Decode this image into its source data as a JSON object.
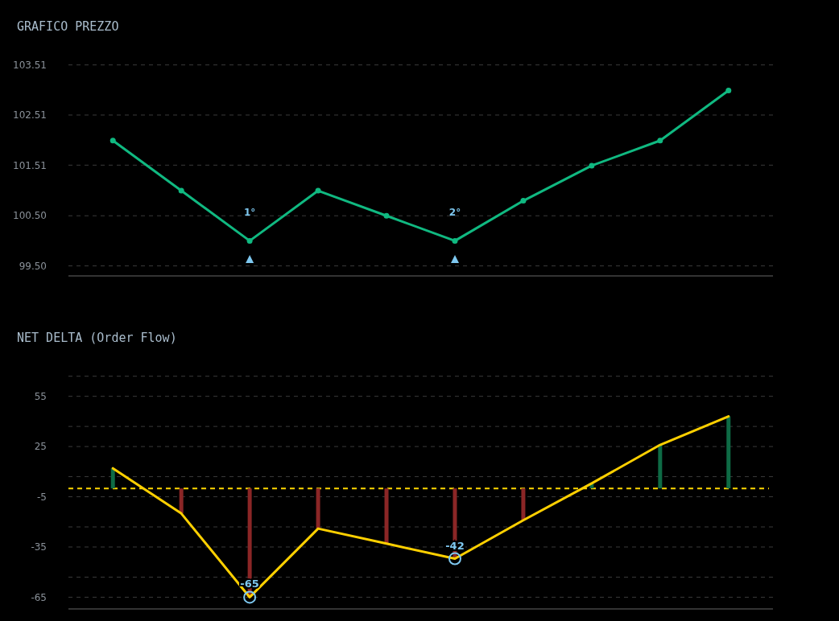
{
  "chart_data": [
    {
      "type": "line",
      "title": "GRAFICO PREZZO",
      "categories": [
        null,
        null,
        null,
        null,
        null,
        null,
        null,
        null,
        null,
        null
      ],
      "series": [
        {
          "color": "#10b981",
          "marker": "circle",
          "values": [
            102.0,
            101.0,
            100.0,
            101.0,
            100.5,
            100.0,
            100.8,
            101.5,
            102.0,
            103.0
          ]
        },
        {
          "type": "scatter",
          "color": "#7ec8f0",
          "marker": "triangle",
          "values": [
            null,
            null,
            99.62,
            null,
            null,
            99.62,
            null,
            null,
            null,
            null
          ]
        }
      ],
      "annotations": [
        "1°",
        "2°"
      ],
      "ylim": [
        99.3,
        103.51
      ],
      "yticks": [
        {
          "value": 99.5,
          "label": "99.50"
        },
        {
          "value": 100.5,
          "label": "100.50"
        },
        101.51,
        102.51,
        103.51
      ],
      "grid": "y"
    },
    {
      "type": "bar",
      "title": "NET DELTA (Order Flow)",
      "categories": [
        null,
        null,
        null,
        null,
        null,
        null,
        null,
        null,
        null,
        null
      ],
      "series": [
        {
          "colors": [
            "#0e6b45",
            "#8b2626",
            "#8b2626",
            "#8b2626",
            "#8b2626",
            "#8b2626",
            "#8b2626",
            "#0e6b45",
            "#0e6b45",
            "#0e6b45"
          ],
          "values": [
            12,
            -15,
            -65,
            -24,
            -33,
            -42,
            -19,
            3,
            26,
            43
          ]
        },
        {
          "type": "line",
          "color": "#ffd000",
          "marker": "none",
          "values": [
            12,
            -15,
            -65,
            -24,
            -33,
            -42,
            -19,
            3,
            26,
            43
          ]
        },
        {
          "type": "scatter",
          "color": "#7ec8f0",
          "marker": "circle",
          "values": [
            null,
            null,
            -65,
            null,
            null,
            -42,
            null,
            null,
            null,
            null
          ],
          "value_labels": [
            null,
            null,
            "-65",
            null,
            null,
            "-42",
            null,
            null,
            null,
            null
          ]
        }
      ],
      "ref_lines": [
        {
          "axis": "y",
          "value": 0,
          "color": "#ffd700",
          "line_style": "dashed"
        }
      ],
      "ylim": [
        -72,
        67
      ],
      "yticks": [
        {
          "value": -53,
          "label": null
        },
        {
          "value": -23,
          "label": null
        },
        {
          "value": 7,
          "label": null
        },
        {
          "value": 37,
          "label": null
        },
        {
          "value": 67,
          "label": null
        },
        -65,
        -35,
        -5,
        25,
        55
      ],
      "grid": "y"
    }
  ]
}
